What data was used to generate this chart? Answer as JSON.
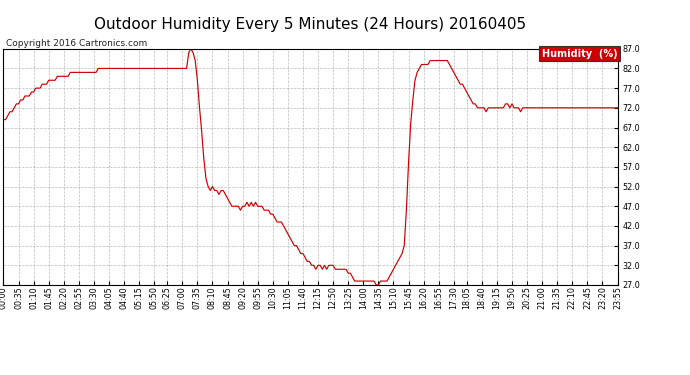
{
  "title": "Outdoor Humidity Every 5 Minutes (24 Hours) 20160405",
  "copyright": "Copyright 2016 Cartronics.com",
  "legend_label": "Humidity  (%)",
  "line_color": "#cc0000",
  "legend_bg": "#cc0000",
  "legend_text_color": "#ffffff",
  "background_color": "#ffffff",
  "grid_color": "#aaaaaa",
  "ylim": [
    27.0,
    87.0
  ],
  "yticks": [
    27.0,
    32.0,
    37.0,
    42.0,
    47.0,
    52.0,
    57.0,
    62.0,
    67.0,
    72.0,
    77.0,
    82.0,
    87.0
  ],
  "title_fontsize": 11,
  "copyright_fontsize": 6.5,
  "tick_fontsize": 5.8,
  "humidity_data": [
    69,
    69,
    70,
    71,
    71,
    72,
    73,
    73,
    74,
    74,
    75,
    75,
    75,
    76,
    76,
    77,
    77,
    77,
    78,
    78,
    78,
    79,
    79,
    79,
    79,
    80,
    80,
    80,
    80,
    80,
    80,
    81,
    81,
    81,
    81,
    81,
    81,
    81,
    81,
    81,
    81,
    81,
    81,
    81,
    82,
    82,
    82,
    82,
    82,
    82,
    82,
    82,
    82,
    82,
    82,
    82,
    82,
    82,
    82,
    82,
    82,
    82,
    82,
    82,
    82,
    82,
    82,
    82,
    82,
    82,
    82,
    82,
    82,
    82,
    82,
    82,
    82,
    82,
    82,
    82,
    82,
    82,
    82,
    82,
    82,
    82,
    86,
    87,
    86,
    84,
    79,
    72,
    66,
    59,
    54,
    52,
    51,
    52,
    51,
    51,
    50,
    51,
    51,
    50,
    49,
    48,
    47,
    47,
    47,
    47,
    46,
    47,
    47,
    48,
    47,
    48,
    47,
    48,
    47,
    47,
    47,
    46,
    46,
    46,
    45,
    45,
    44,
    43,
    43,
    43,
    42,
    41,
    40,
    39,
    38,
    37,
    37,
    36,
    35,
    35,
    34,
    33,
    33,
    32,
    32,
    31,
    32,
    32,
    31,
    32,
    31,
    32,
    32,
    32,
    31,
    31,
    31,
    31,
    31,
    31,
    30,
    30,
    29,
    28,
    28,
    28,
    28,
    28,
    28,
    28,
    28,
    28,
    28,
    27,
    27,
    28,
    28,
    28,
    28,
    29,
    30,
    31,
    32,
    33,
    34,
    35,
    37,
    46,
    58,
    68,
    74,
    79,
    81,
    82,
    83,
    83,
    83,
    83,
    84,
    84,
    84,
    84,
    84,
    84,
    84,
    84,
    84,
    83,
    82,
    81,
    80,
    79,
    78,
    78,
    77,
    76,
    75,
    74,
    73,
    73,
    72,
    72,
    72,
    72,
    71,
    72,
    72,
    72,
    72,
    72,
    72,
    72,
    72,
    73,
    73,
    72,
    73,
    72,
    72,
    72,
    71,
    72,
    72,
    72,
    72,
    72,
    72,
    72,
    72,
    72,
    72,
    72,
    72,
    72,
    72,
    72,
    72,
    72,
    72,
    72,
    72,
    72,
    72,
    72,
    72,
    72,
    72,
    72,
    72,
    72,
    72,
    72,
    72,
    72,
    72,
    72,
    72,
    72,
    72,
    72,
    72,
    72,
    72,
    72,
    72,
    72
  ],
  "xtick_labels": [
    "00:00",
    "00:35",
    "01:10",
    "01:45",
    "02:20",
    "02:55",
    "03:30",
    "04:05",
    "04:40",
    "05:15",
    "05:50",
    "06:25",
    "07:00",
    "07:35",
    "08:10",
    "08:45",
    "09:20",
    "09:55",
    "10:30",
    "11:05",
    "11:40",
    "12:15",
    "12:50",
    "13:25",
    "14:00",
    "14:35",
    "15:10",
    "15:45",
    "16:20",
    "16:55",
    "17:30",
    "18:05",
    "18:40",
    "19:15",
    "19:50",
    "20:25",
    "21:00",
    "21:35",
    "22:10",
    "22:45",
    "23:20",
    "23:55"
  ]
}
